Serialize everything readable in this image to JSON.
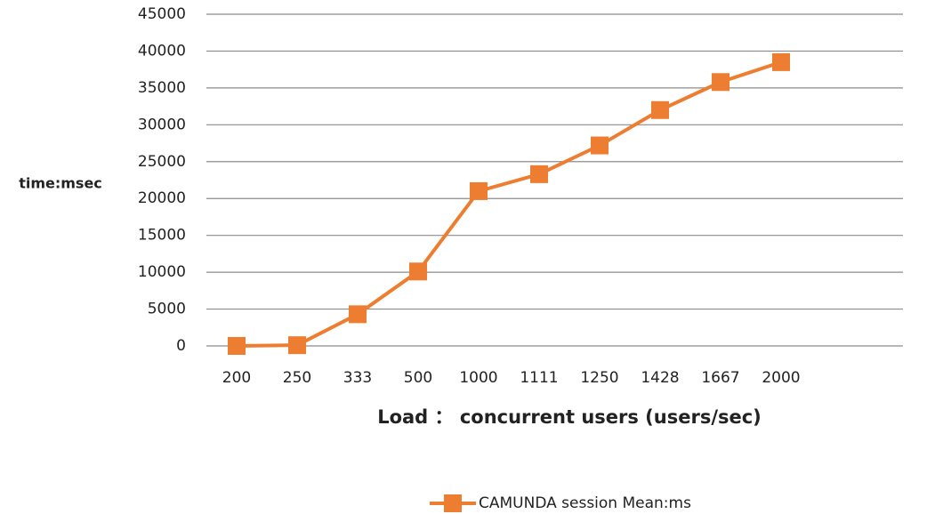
{
  "chart_data": {
    "type": "line",
    "y_label": "time:msec",
    "x_label": "Load  ：  concurrent users (users/sec)",
    "categories": [
      "200",
      "250",
      "333",
      "500",
      "1000",
      "1111",
      "1250",
      "1428",
      "1667",
      "2000"
    ],
    "series": [
      {
        "name": "CAMUNDA session Mean:ms",
        "color": "#ED7D31",
        "values": [
          0,
          100,
          4300,
          10100,
          21000,
          23300,
          27200,
          32000,
          35800,
          38500
        ]
      }
    ],
    "ylim": [
      0,
      45000
    ],
    "yticks": [
      0,
      5000,
      10000,
      15000,
      20000,
      25000,
      30000,
      35000,
      40000,
      45000
    ],
    "grid": true,
    "legend": "bottom"
  }
}
